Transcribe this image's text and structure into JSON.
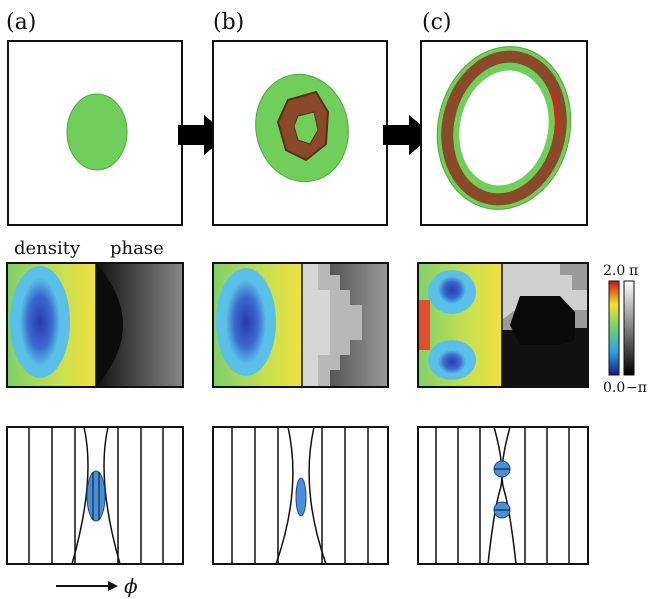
{
  "panels": [
    {
      "label": "(a)"
    },
    {
      "label": "(b)"
    },
    {
      "label": "(c)"
    }
  ],
  "row2": {
    "density_label": "density",
    "phase_label": "phase"
  },
  "colorbar_density": {
    "max_label": "2.0",
    "min_label": "0.0"
  },
  "colorbar_phase": {
    "max_label": "π",
    "min_label": "−π"
  },
  "axis": {
    "phi_label": "ϕ"
  },
  "colors": {
    "green_body": "#6fcf5a",
    "brown_ring": "#8a4a2a",
    "vortex_blue": "#4a90d9",
    "arrow": "#000000"
  }
}
